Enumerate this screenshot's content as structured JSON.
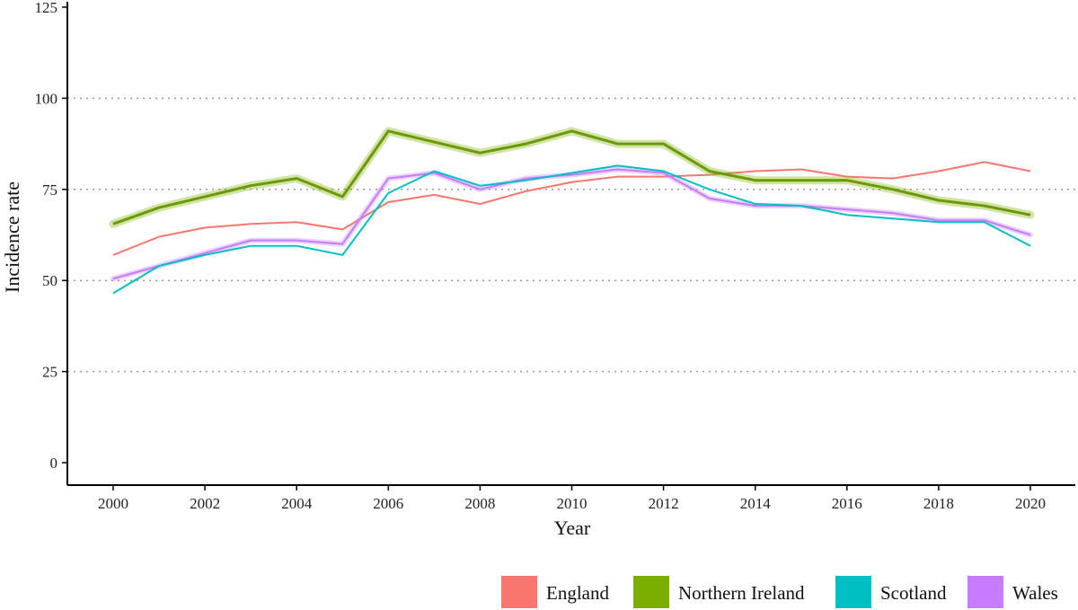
{
  "chart_data": {
    "type": "line",
    "title": "",
    "xlabel": "Year",
    "ylabel": "Incidence rate",
    "xlim": [
      2000,
      2020
    ],
    "ylim": [
      0,
      125
    ],
    "x_ticks": [
      2000,
      2002,
      2004,
      2006,
      2008,
      2010,
      2012,
      2014,
      2016,
      2018,
      2020
    ],
    "y_ticks": [
      0,
      25,
      50,
      75,
      100,
      125
    ],
    "grid": "horizontal dotted at 25, 50, 75, 100",
    "legend_position": "bottom-right",
    "x": [
      2000,
      2001,
      2002,
      2003,
      2004,
      2005,
      2006,
      2007,
      2008,
      2009,
      2010,
      2011,
      2012,
      2013,
      2014,
      2015,
      2016,
      2017,
      2018,
      2019,
      2020
    ],
    "series": [
      {
        "name": "England",
        "color": "#F8766D",
        "values": [
          57,
          62,
          64.5,
          65.5,
          66,
          64,
          71.5,
          73.5,
          71,
          74.5,
          77,
          78.5,
          78.5,
          79,
          80,
          80.5,
          78.5,
          78,
          80,
          82.5,
          80
        ]
      },
      {
        "name": "Northern Ireland",
        "color": "#7CAE00",
        "values": [
          65.5,
          70,
          73,
          76,
          78,
          73,
          91,
          88,
          85,
          87.5,
          91,
          87.5,
          87.5,
          80,
          77.5,
          77.5,
          77.5,
          75,
          72,
          70.5,
          68
        ]
      },
      {
        "name": "Scotland",
        "color": "#00BFC4",
        "values": [
          46.5,
          54,
          57,
          59.5,
          59.5,
          57,
          74,
          80,
          76,
          77.5,
          79.5,
          81.5,
          80,
          75,
          71,
          70.5,
          68,
          67,
          66,
          66,
          59.5
        ]
      },
      {
        "name": "Wales",
        "color": "#C77CFF",
        "values": [
          50.5,
          54,
          57.5,
          61,
          61,
          60,
          78,
          79.5,
          75,
          78,
          79,
          80.5,
          79.5,
          72.5,
          70.5,
          70.5,
          69.5,
          68.5,
          66.5,
          66.5,
          62.5
        ]
      }
    ]
  }
}
